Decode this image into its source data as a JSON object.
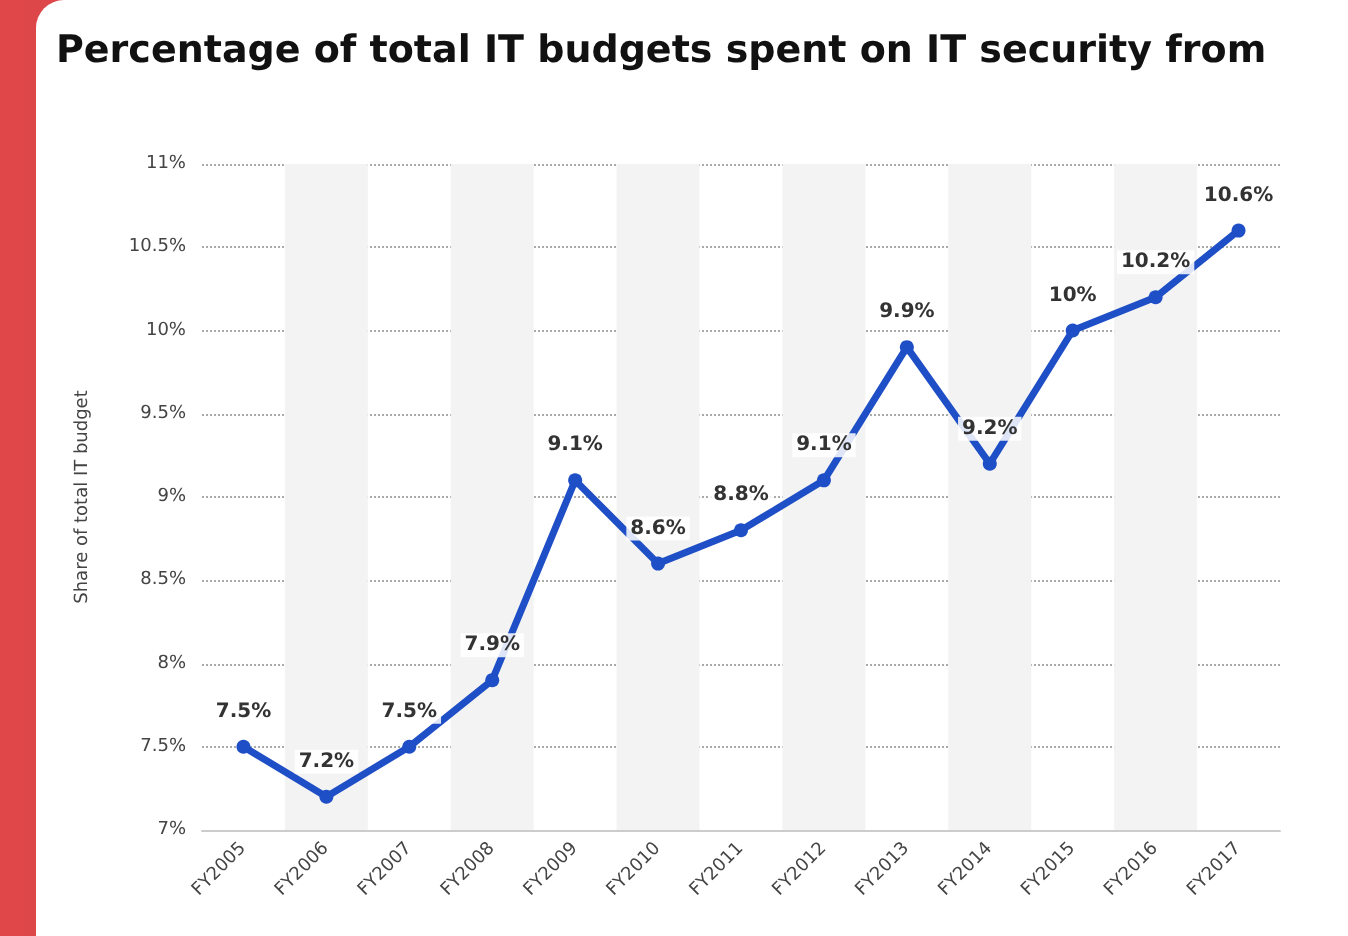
{
  "chart_data": {
    "type": "line",
    "title": "Percentage of total IT budgets spent on IT security from",
    "ylabel": "Share of total IT budget",
    "categories": [
      "FY2005",
      "FY2006",
      "FY2007",
      "FY2008",
      "FY2009",
      "FY2010",
      "FY2011",
      "FY2012",
      "FY2013",
      "FY2014",
      "FY2015",
      "FY2016",
      "FY2017"
    ],
    "series": [
      {
        "color": "#1f4fc6",
        "values": [
          7.5,
          7.2,
          7.5,
          7.9,
          9.1,
          8.6,
          8.8,
          9.1,
          9.9,
          9.2,
          10,
          10.2,
          10.6
        ],
        "value_labels": [
          "7.5%",
          "7.2%",
          "7.5%",
          "7.9%",
          "9.1%",
          "8.6%",
          "8.8%",
          "9.1%",
          "9.9%",
          "9.2%",
          "10%",
          "10.2%",
          "10.6%"
        ]
      }
    ],
    "ylim": [
      7,
      11
    ],
    "yticks": [
      {
        "value": 7,
        "label": "7%"
      },
      {
        "value": 7.5,
        "label": "7.5%"
      },
      {
        "value": 8,
        "label": "8%"
      },
      {
        "value": 8.5,
        "label": "8.5%"
      },
      {
        "value": 9,
        "label": "9%"
      },
      {
        "value": 9.5,
        "label": "9.5%"
      },
      {
        "value": 10,
        "label": "10%"
      },
      {
        "value": 10.5,
        "label": "10.5%"
      },
      {
        "value": 11,
        "label": "11%"
      }
    ],
    "grid": "y",
    "marker": "circle",
    "line_style": "solid"
  }
}
